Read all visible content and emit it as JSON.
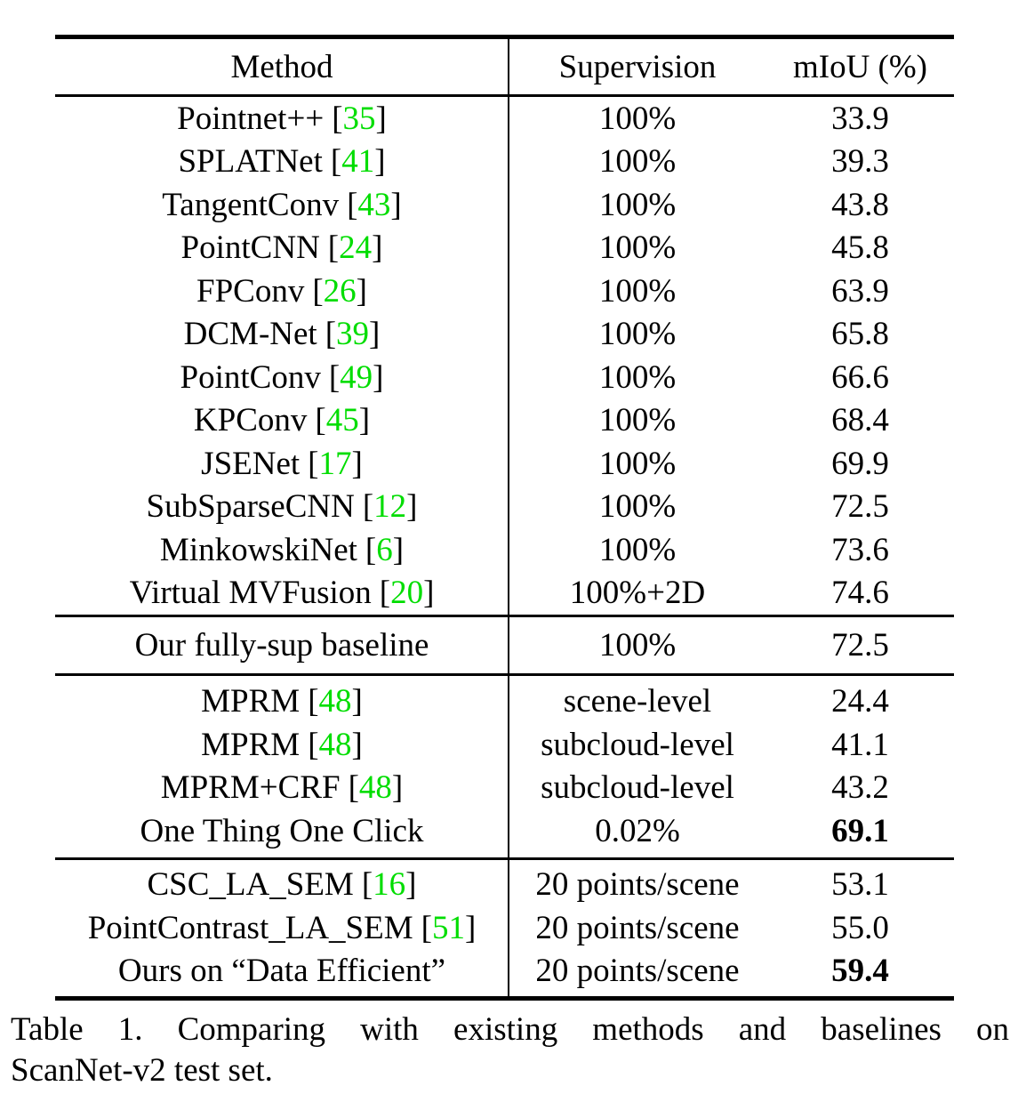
{
  "colors": {
    "citation_green": "#00dd00"
  },
  "table": {
    "headers": {
      "method": "Method",
      "supervision": "Supervision",
      "miou": "mIoU (%)"
    },
    "sections": [
      {
        "name": "fully-supervised-methods",
        "rows": [
          {
            "method": "Pointnet++",
            "cite": "35",
            "supervision": "100%",
            "miou": "33.9",
            "bold": false
          },
          {
            "method": "SPLATNet",
            "cite": "41",
            "supervision": "100%",
            "miou": "39.3",
            "bold": false
          },
          {
            "method": "TangentConv",
            "cite": "43",
            "supervision": "100%",
            "miou": "43.8",
            "bold": false
          },
          {
            "method": "PointCNN",
            "cite": "24",
            "supervision": "100%",
            "miou": "45.8",
            "bold": false
          },
          {
            "method": "FPConv",
            "cite": "26",
            "supervision": "100%",
            "miou": "63.9",
            "bold": false
          },
          {
            "method": "DCM-Net",
            "cite": "39",
            "supervision": "100%",
            "miou": "65.8",
            "bold": false
          },
          {
            "method": "PointConv",
            "cite": "49",
            "supervision": "100%",
            "miou": "66.6",
            "bold": false
          },
          {
            "method": "KPConv",
            "cite": "45",
            "supervision": "100%",
            "miou": "68.4",
            "bold": false
          },
          {
            "method": "JSENet",
            "cite": "17",
            "supervision": "100%",
            "miou": "69.9",
            "bold": false
          },
          {
            "method": "SubSparseCNN",
            "cite": "12",
            "supervision": "100%",
            "miou": "72.5",
            "bold": false
          },
          {
            "method": "MinkowskiNet",
            "cite": "6",
            "supervision": "100%",
            "miou": "73.6",
            "bold": false
          },
          {
            "method": "Virtual MVFusion",
            "cite": "20",
            "supervision": "100%+2D",
            "miou": "74.6",
            "bold": false
          }
        ]
      },
      {
        "name": "our-baseline",
        "rows": [
          {
            "method": "Our fully-sup baseline",
            "cite": "",
            "supervision": "100%",
            "miou": "72.5",
            "bold": false
          }
        ]
      },
      {
        "name": "weakly-supervised-methods",
        "rows": [
          {
            "method": "MPRM",
            "cite": "48",
            "supervision": "scene-level",
            "miou": "24.4",
            "bold": false
          },
          {
            "method": "MPRM",
            "cite": "48",
            "supervision": "subcloud-level",
            "miou": "41.1",
            "bold": false
          },
          {
            "method": "MPRM+CRF",
            "cite": "48",
            "supervision": "subcloud-level",
            "miou": "43.2",
            "bold": false
          },
          {
            "method": "One Thing One Click",
            "cite": "",
            "supervision": "0.02%",
            "miou": "69.1",
            "bold": true
          }
        ]
      },
      {
        "name": "data-efficient-benchmark",
        "rows": [
          {
            "method": "CSC_LA_SEM",
            "cite": "16",
            "supervision": "20 points/scene",
            "miou": "53.1",
            "bold": false
          },
          {
            "method": "PointContrast_LA_SEM",
            "cite": "51",
            "supervision": "20 points/scene",
            "miou": "55.0",
            "bold": false
          },
          {
            "method": "Ours on “Data Efficient”",
            "cite": "",
            "supervision": "20 points/scene",
            "miou": "59.4",
            "bold": true
          }
        ]
      }
    ]
  },
  "caption": {
    "line1": "Table 1. Comparing with existing methods and baselines on",
    "line2": "ScanNet-v2 test set."
  }
}
